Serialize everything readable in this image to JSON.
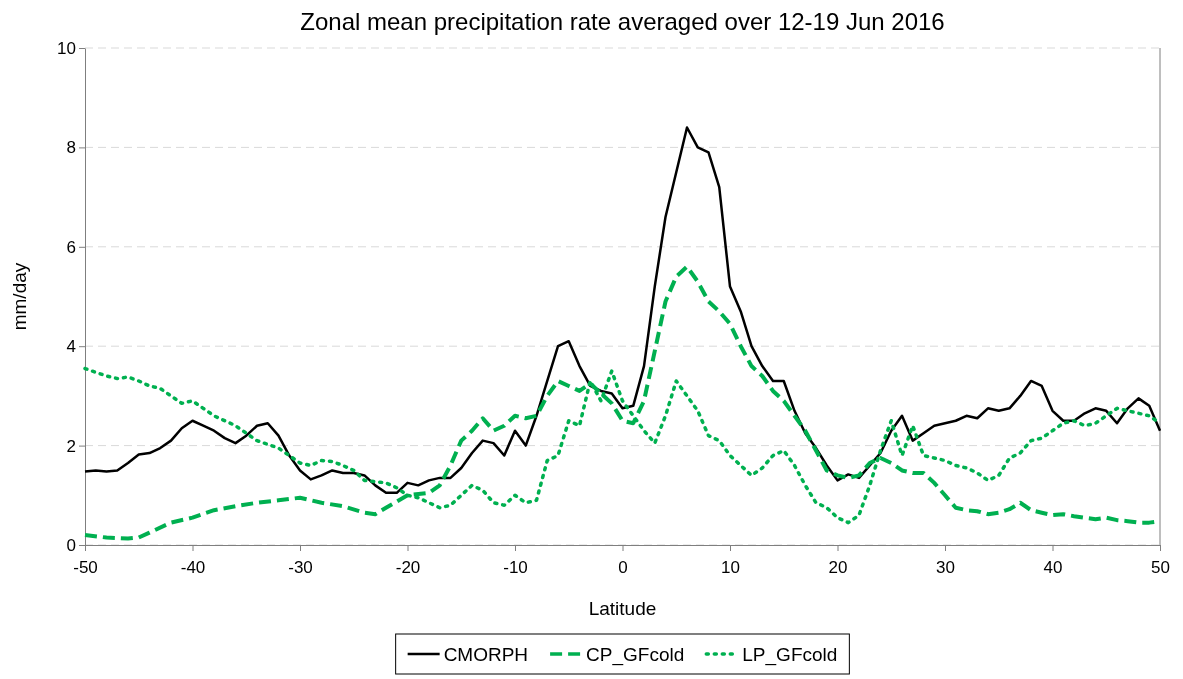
{
  "chart_data": {
    "type": "line",
    "title": "Zonal mean precipitation rate averaged over 12-19 Jun 2016",
    "xlabel": "Latitude",
    "ylabel": "mm/day",
    "xlim": [
      -50,
      50
    ],
    "xticks": [
      -50,
      -40,
      -30,
      -20,
      -10,
      0,
      10,
      20,
      30,
      40,
      50
    ],
    "ylim": [
      0,
      10
    ],
    "yticks": [
      0,
      2,
      4,
      6,
      8,
      10
    ],
    "grid": "y",
    "legend": "bottom",
    "marker": "none",
    "series": [
      {
        "name": "CMORPH",
        "color": "#000000",
        "line_style": "solid",
        "x": [
          -50,
          -49,
          -48,
          -47,
          -46,
          -45,
          -44,
          -43,
          -42,
          -41,
          -40,
          -39,
          -38,
          -37,
          -36,
          -35,
          -34,
          -33,
          -32,
          -31,
          -30,
          -29,
          -28,
          -27,
          -26,
          -25,
          -24,
          -23,
          -22,
          -21,
          -20,
          -19,
          -18,
          -17,
          -16,
          -15,
          -14,
          -13,
          -12,
          -11,
          -10,
          -9,
          -8,
          -7,
          -6,
          -5,
          -4,
          -3,
          -2,
          -1,
          0,
          1,
          2,
          3,
          4,
          5,
          6,
          7,
          8,
          9,
          10,
          11,
          12,
          13,
          14,
          15,
          16,
          17,
          18,
          19,
          20,
          21,
          22,
          23,
          24,
          25,
          26,
          27,
          28,
          29,
          30,
          31,
          32,
          33,
          34,
          35,
          36,
          37,
          38,
          39,
          40,
          41,
          42,
          43,
          44,
          45,
          46,
          47,
          48,
          49,
          50
        ],
        "values": [
          1.48,
          1.5,
          1.48,
          1.5,
          1.65,
          1.82,
          1.85,
          1.95,
          2.1,
          2.35,
          2.5,
          2.4,
          2.3,
          2.15,
          2.05,
          2.2,
          2.4,
          2.45,
          2.2,
          1.8,
          1.5,
          1.32,
          1.4,
          1.5,
          1.45,
          1.45,
          1.4,
          1.2,
          1.05,
          1.05,
          1.25,
          1.2,
          1.3,
          1.35,
          1.35,
          1.55,
          1.85,
          2.1,
          2.05,
          1.8,
          2.3,
          2.0,
          2.6,
          3.3,
          4.0,
          4.1,
          3.6,
          3.2,
          3.1,
          3.05,
          2.75,
          2.8,
          3.6,
          5.2,
          6.6,
          7.5,
          8.4,
          8.0,
          7.9,
          7.2,
          5.2,
          4.7,
          4.0,
          3.6,
          3.3,
          3.3,
          2.7,
          2.25,
          1.95,
          1.6,
          1.3,
          1.42,
          1.35,
          1.6,
          1.85,
          2.3,
          2.6,
          2.1,
          2.25,
          2.4,
          2.45,
          2.5,
          2.6,
          2.55,
          2.75,
          2.7,
          2.75,
          3.0,
          3.3,
          3.2,
          2.7,
          2.5,
          2.5,
          2.65,
          2.75,
          2.7,
          2.45,
          2.75,
          2.95,
          2.8,
          2.3
        ]
      },
      {
        "name": "CP_GFcold",
        "color": "#00b050",
        "line_style": "dashed",
        "x": [
          -50,
          -48,
          -46,
          -45,
          -44,
          -42,
          -40,
          -38,
          -36,
          -34,
          -32,
          -30,
          -28,
          -26,
          -24,
          -23,
          -22,
          -20,
          -18,
          -17,
          -16,
          -15,
          -14,
          -13,
          -12,
          -11,
          -10,
          -9,
          -8,
          -7,
          -6,
          -5,
          -4,
          -3,
          -2,
          -1,
          0,
          1,
          2,
          3,
          4,
          5,
          6,
          7,
          8,
          9,
          10,
          11,
          12,
          13,
          14,
          15,
          16,
          17,
          18,
          19,
          20,
          21,
          22,
          23,
          24,
          25,
          26,
          27,
          28,
          29,
          30,
          31,
          32,
          33,
          34,
          35,
          36,
          37,
          38,
          39,
          40,
          41,
          42,
          43,
          44,
          45,
          46,
          47,
          48,
          49,
          50
        ],
        "values": [
          0.2,
          0.15,
          0.13,
          0.15,
          0.25,
          0.45,
          0.55,
          0.7,
          0.78,
          0.85,
          0.9,
          0.95,
          0.85,
          0.78,
          0.65,
          0.62,
          0.75,
          1.0,
          1.05,
          1.2,
          1.6,
          2.1,
          2.3,
          2.55,
          2.3,
          2.4,
          2.6,
          2.55,
          2.6,
          3.0,
          3.3,
          3.2,
          3.1,
          3.25,
          3.05,
          2.85,
          2.5,
          2.45,
          2.9,
          3.9,
          4.9,
          5.4,
          5.6,
          5.3,
          4.9,
          4.7,
          4.45,
          4.0,
          3.6,
          3.4,
          3.1,
          2.9,
          2.6,
          2.3,
          1.9,
          1.5,
          1.4,
          1.35,
          1.4,
          1.65,
          1.75,
          1.65,
          1.5,
          1.45,
          1.45,
          1.25,
          1.0,
          0.75,
          0.7,
          0.68,
          0.62,
          0.65,
          0.72,
          0.85,
          0.7,
          0.65,
          0.6,
          0.62,
          0.58,
          0.55,
          0.52,
          0.55,
          0.5,
          0.48,
          0.45,
          0.45,
          0.48
        ]
      },
      {
        "name": "LP_GFcold",
        "color": "#00b050",
        "line_style": "dotted",
        "x": [
          -50,
          -48,
          -47,
          -46,
          -45,
          -44,
          -43,
          -42,
          -41,
          -40,
          -39,
          -38,
          -36,
          -34,
          -32,
          -30,
          -29,
          -28,
          -27,
          -26,
          -25,
          -24,
          -22,
          -21,
          -20,
          -19,
          -18,
          -17,
          -16,
          -15,
          -14,
          -13,
          -12,
          -11,
          -10,
          -9,
          -8,
          -7,
          -6,
          -5,
          -4,
          -3,
          -2,
          -1,
          0,
          1,
          2,
          3,
          4,
          5,
          6,
          7,
          8,
          9,
          10,
          11,
          12,
          13,
          14,
          15,
          16,
          17,
          18,
          19,
          20,
          21,
          22,
          23,
          24,
          25,
          26,
          27,
          28,
          29,
          30,
          31,
          32,
          33,
          34,
          35,
          36,
          37,
          38,
          39,
          40,
          41,
          42,
          43,
          44,
          45,
          46,
          47,
          48,
          49,
          50
        ],
        "values": [
          3.55,
          3.4,
          3.35,
          3.38,
          3.3,
          3.2,
          3.15,
          3.0,
          2.85,
          2.9,
          2.75,
          2.6,
          2.4,
          2.1,
          1.95,
          1.65,
          1.6,
          1.7,
          1.68,
          1.6,
          1.5,
          1.3,
          1.25,
          1.15,
          1.0,
          0.95,
          0.85,
          0.75,
          0.8,
          1.0,
          1.2,
          1.1,
          0.85,
          0.8,
          1.0,
          0.85,
          0.9,
          1.7,
          1.8,
          2.5,
          2.4,
          3.3,
          2.9,
          3.5,
          2.9,
          2.6,
          2.3,
          2.05,
          2.6,
          3.3,
          3.0,
          2.7,
          2.2,
          2.1,
          1.8,
          1.6,
          1.4,
          1.55,
          1.8,
          1.9,
          1.6,
          1.2,
          0.85,
          0.75,
          0.55,
          0.45,
          0.6,
          1.2,
          1.9,
          2.5,
          1.8,
          2.4,
          1.8,
          1.75,
          1.7,
          1.6,
          1.55,
          1.45,
          1.3,
          1.4,
          1.75,
          1.85,
          2.1,
          2.15,
          2.3,
          2.45,
          2.5,
          2.4,
          2.45,
          2.6,
          2.75,
          2.7,
          2.65,
          2.6,
          2.45
        ]
      }
    ]
  }
}
